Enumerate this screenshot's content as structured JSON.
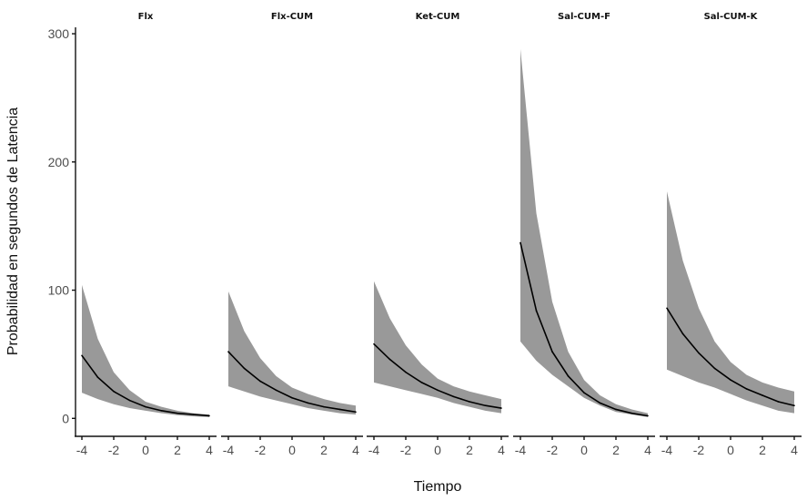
{
  "chart_data": {
    "type": "area",
    "xlabel": "Tiempo",
    "ylabel": "Probabilidad en segundos de Latencia",
    "xlim": [
      -4,
      4
    ],
    "ylim": [
      -14,
      305
    ],
    "x_ticks": [
      -4,
      -2,
      0,
      2,
      4
    ],
    "x_tick_labels": [
      "-4",
      "-2",
      "0",
      "2",
      "4"
    ],
    "y_ticks": [
      0,
      100,
      200,
      300
    ],
    "y_tick_labels": [
      "0",
      "100",
      "200",
      "300"
    ],
    "grid": false,
    "band_color": "#999999",
    "line_color": "#000000",
    "x": [
      -4,
      -3,
      -2,
      -1,
      0,
      1,
      2,
      3,
      4
    ],
    "panels": [
      {
        "title": "Flx",
        "mean": [
          49,
          32,
          21,
          14,
          9,
          6,
          4,
          3,
          2
        ],
        "lower": [
          20,
          15,
          11,
          8,
          6,
          4,
          2.5,
          1.5,
          1
        ],
        "upper": [
          104,
          62,
          36,
          22,
          13,
          9,
          6,
          4,
          3
        ]
      },
      {
        "title": "Flx-CUM",
        "mean": [
          52,
          39,
          29,
          22,
          16,
          12,
          9,
          7,
          5
        ],
        "lower": [
          25,
          21,
          17,
          14,
          11,
          8,
          6,
          4,
          3
        ],
        "upper": [
          99,
          68,
          47,
          33,
          24,
          19,
          15,
          12,
          10
        ]
      },
      {
        "title": "Ket-CUM",
        "mean": [
          58,
          46,
          36,
          28,
          22,
          17,
          13,
          10,
          8
        ],
        "lower": [
          28,
          25,
          22,
          19,
          16,
          12,
          9,
          6,
          4
        ],
        "upper": [
          107,
          78,
          57,
          42,
          31,
          25,
          21,
          18,
          15
        ]
      },
      {
        "title": "Sal-CUM-F",
        "mean": [
          137,
          84,
          52,
          33,
          20,
          12,
          7,
          4,
          2
        ],
        "lower": [
          60,
          45,
          34,
          25,
          16,
          10,
          5,
          3,
          1
        ],
        "upper": [
          288,
          160,
          91,
          52,
          30,
          18,
          11,
          7,
          4
        ]
      },
      {
        "title": "Sal-CUM-K",
        "mean": [
          86,
          66,
          51,
          39,
          30,
          23,
          18,
          13,
          10
        ],
        "lower": [
          38,
          33,
          28,
          24,
          19,
          14,
          10,
          6,
          4
        ],
        "upper": [
          177,
          123,
          86,
          60,
          44,
          34,
          28,
          24,
          21
        ]
      }
    ]
  }
}
